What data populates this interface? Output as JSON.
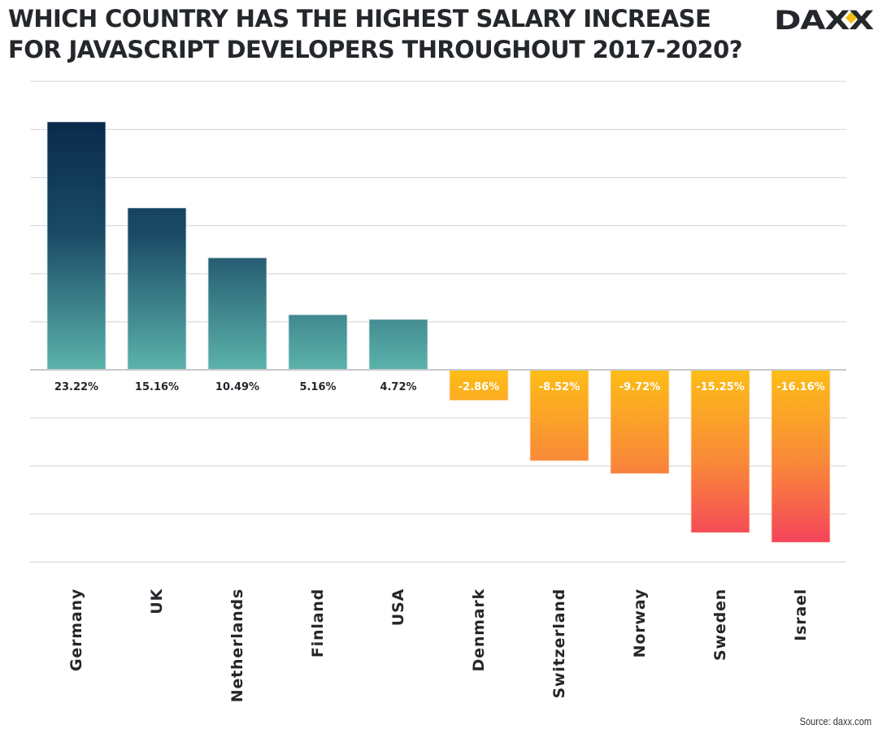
{
  "header": {
    "title_line1": "WHICH COUNTRY HAS THE HIGHEST SALARY INCREASE",
    "title_line2": "FOR JAVASCRIPT DEVELOPERS THROUGHOUT 2017-2020?",
    "logo_text": "DAXX"
  },
  "footer": {
    "source": "Source: daxx.com"
  },
  "colors": {
    "positive_top": "#0a2a4c",
    "positive_bottom": "#5bb3ab",
    "negative_top": "#fdbd16",
    "negative_bottom": "#f5435c",
    "grid": "#dcdcdc",
    "zero_line": "#c8c8c8",
    "logo_accent": "#f2bd14",
    "text": "#24272b"
  },
  "chart_data": {
    "type": "bar",
    "title": "Which country has the highest salary increase for JavaScript developers throughout 2017-2020?",
    "xlabel": "",
    "ylabel": "",
    "categories": [
      "Germany",
      "UK",
      "Netherlands",
      "Finland",
      "USA",
      "Denmark",
      "Switzerland",
      "Norway",
      "Sweden",
      "Israel"
    ],
    "values": [
      23.22,
      15.16,
      10.49,
      5.16,
      4.72,
      -2.86,
      -8.52,
      -9.72,
      -15.25,
      -16.16
    ],
    "labels": [
      "23.22%",
      "15.16%",
      "10.49%",
      "5.16%",
      "4.72%",
      "-2.86%",
      "-8.52%",
      "-9.72%",
      "-15.25%",
      "-16.16%"
    ],
    "unit": "%",
    "ylim": [
      -18,
      27
    ],
    "grid_step": 4.5,
    "grid": true,
    "y_tick_labels_shown": false,
    "legend": "none"
  }
}
